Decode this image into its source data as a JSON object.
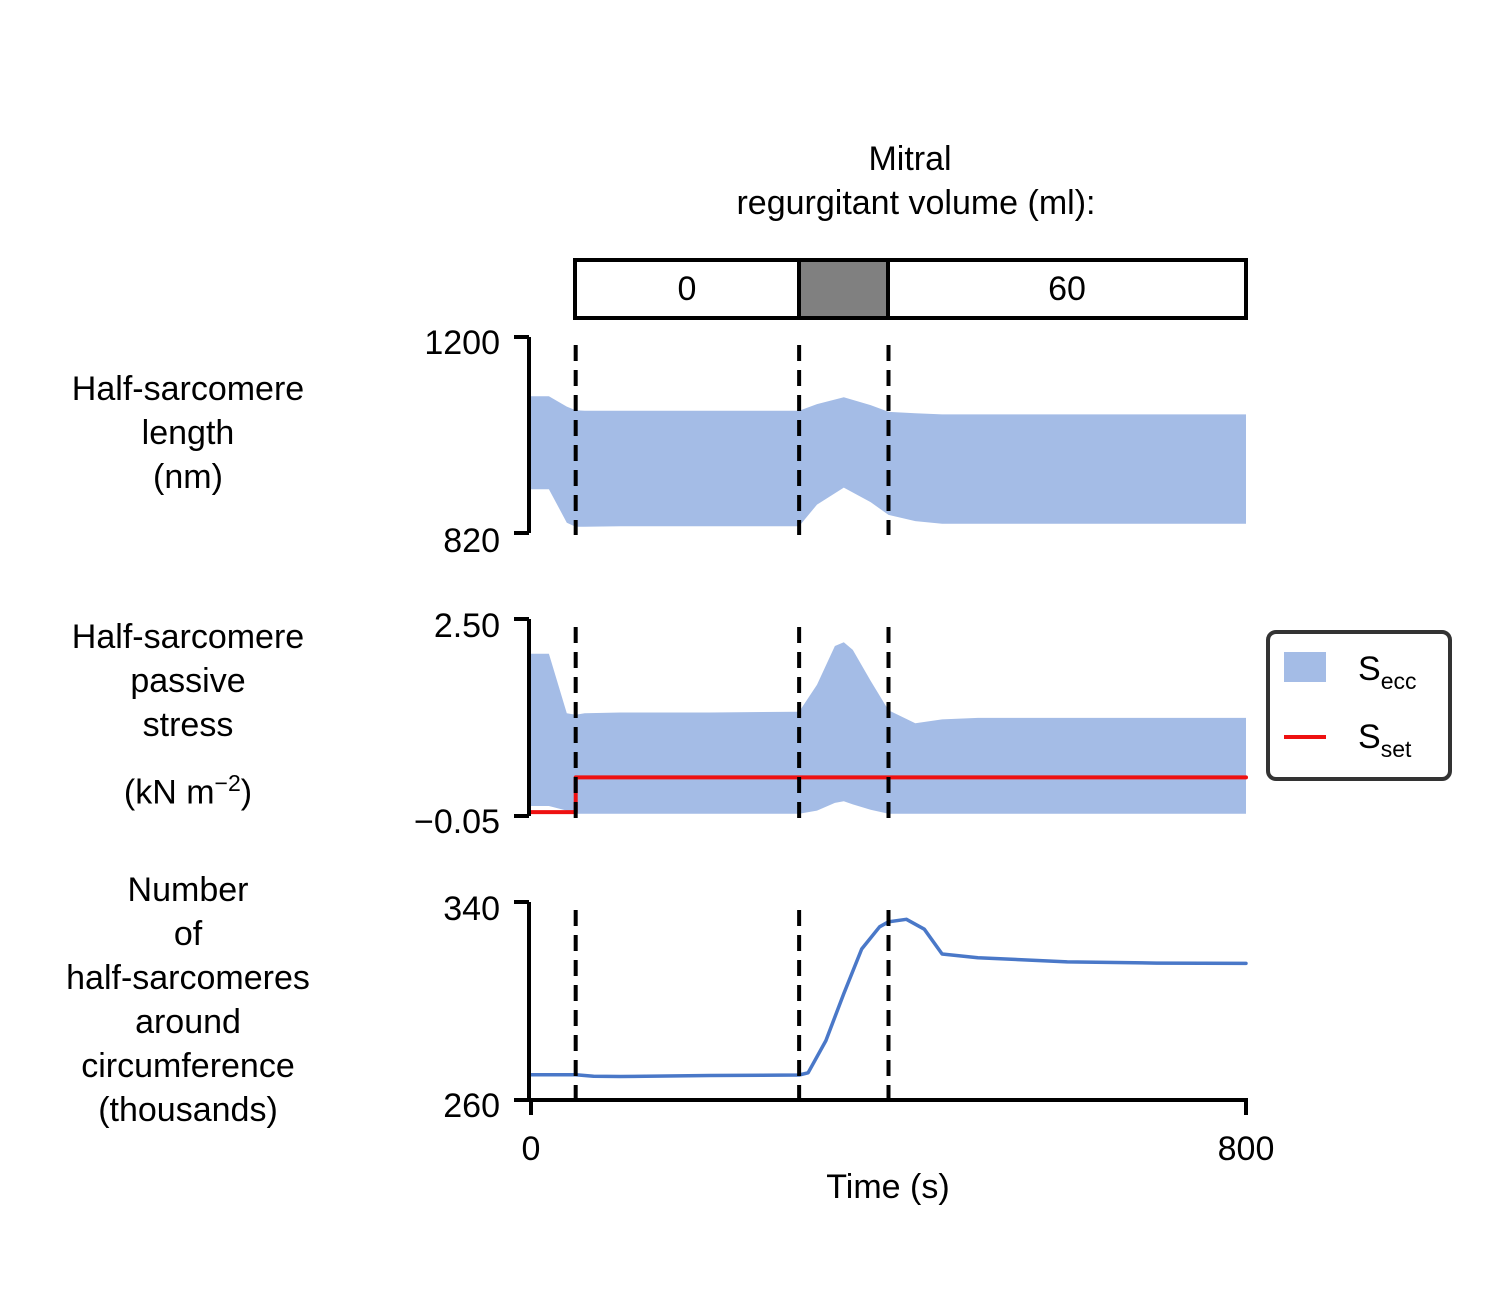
{
  "header": {
    "title_line1": "Mitral",
    "title_line2": "regurgitant volume (ml):",
    "phase_labels": [
      "0",
      "60"
    ]
  },
  "row_labels": {
    "length": [
      "Half-sarcomere",
      "length",
      "(nm)"
    ],
    "stress": [
      "Half-sarcomere",
      "passive",
      "stress"
    ],
    "stress_unit": {
      "pre": "(kN m",
      "sup": "−2",
      "post": ")"
    },
    "count": [
      "Number",
      "of",
      "half-sarcomeres",
      "around",
      "circumference",
      "(thousands)"
    ]
  },
  "legend": {
    "s_ecc": "S",
    "s_ecc_sub": "ecc",
    "s_set": "S",
    "s_set_sub": "set"
  },
  "colors": {
    "band": "#a4bce6",
    "line": "#4a78c8",
    "set": "#ee1111",
    "gray_box": "#808080"
  },
  "chart_data": [
    {
      "type": "area",
      "panel": "length",
      "xlabel": "Time (s)",
      "xlim": [
        0,
        800
      ],
      "xticks": [
        "0",
        "800"
      ],
      "ylim": [
        820,
        1200
      ],
      "yticks": [
        "820",
        "1200"
      ],
      "vlines_x": [
        50,
        300,
        400
      ],
      "series": [
        {
          "x": [
            0,
            20,
            40,
            50,
            60,
            100,
            200,
            300,
            320,
            350,
            380,
            400,
            430,
            460,
            500,
            600,
            700,
            800
          ],
          "upper": [
            1085,
            1085,
            1065,
            1058,
            1057,
            1057,
            1057,
            1057,
            1070,
            1083,
            1068,
            1055,
            1052,
            1050,
            1050,
            1050,
            1050,
            1050
          ],
          "lower": [
            905,
            905,
            840,
            832,
            832,
            833,
            833,
            833,
            875,
            908,
            880,
            855,
            843,
            838,
            838,
            838,
            838,
            838
          ]
        }
      ]
    },
    {
      "type": "area",
      "panel": "stress",
      "ylim": [
        -0.05,
        2.5
      ],
      "yticks": [
        "−0.05",
        "2.50"
      ],
      "vlines_x": [
        50,
        300,
        400
      ],
      "series": [
        {
          "name": "S_ecc",
          "x": [
            0,
            20,
            40,
            50,
            60,
            100,
            200,
            300,
            320,
            340,
            350,
            360,
            380,
            400,
            430,
            460,
            500,
            600,
            700,
            800
          ],
          "upper": [
            2.05,
            2.05,
            1.28,
            1.26,
            1.28,
            1.29,
            1.29,
            1.3,
            1.65,
            2.15,
            2.2,
            2.1,
            1.7,
            1.32,
            1.15,
            1.2,
            1.22,
            1.22,
            1.22,
            1.22
          ],
          "lower": [
            0.08,
            0.08,
            0.02,
            -0.02,
            -0.02,
            -0.02,
            -0.02,
            -0.02,
            0.02,
            0.12,
            0.14,
            0.1,
            0.03,
            -0.02,
            -0.02,
            -0.02,
            -0.02,
            -0.02,
            -0.02,
            -0.02
          ]
        },
        {
          "name": "S_set",
          "step": true,
          "x": [
            0,
            50,
            50,
            800
          ],
          "y": [
            0.0,
            0.0,
            0.45,
            0.45
          ]
        }
      ]
    },
    {
      "type": "line",
      "panel": "count",
      "ylim": [
        260,
        340
      ],
      "yticks": [
        "260",
        "340"
      ],
      "vlines_x": [
        50,
        300,
        400
      ],
      "series": [
        {
          "x": [
            0,
            50,
            70,
            100,
            200,
            300,
            310,
            330,
            350,
            370,
            390,
            400,
            420,
            440,
            460,
            500,
            600,
            700,
            800
          ],
          "y": [
            270.2,
            270.2,
            269.6,
            269.5,
            269.9,
            270.1,
            271.0,
            284.0,
            303.0,
            321.0,
            330.0,
            332.0,
            333.0,
            329.0,
            319.0,
            317.5,
            315.8,
            315.3,
            315.2
          ]
        }
      ]
    }
  ]
}
